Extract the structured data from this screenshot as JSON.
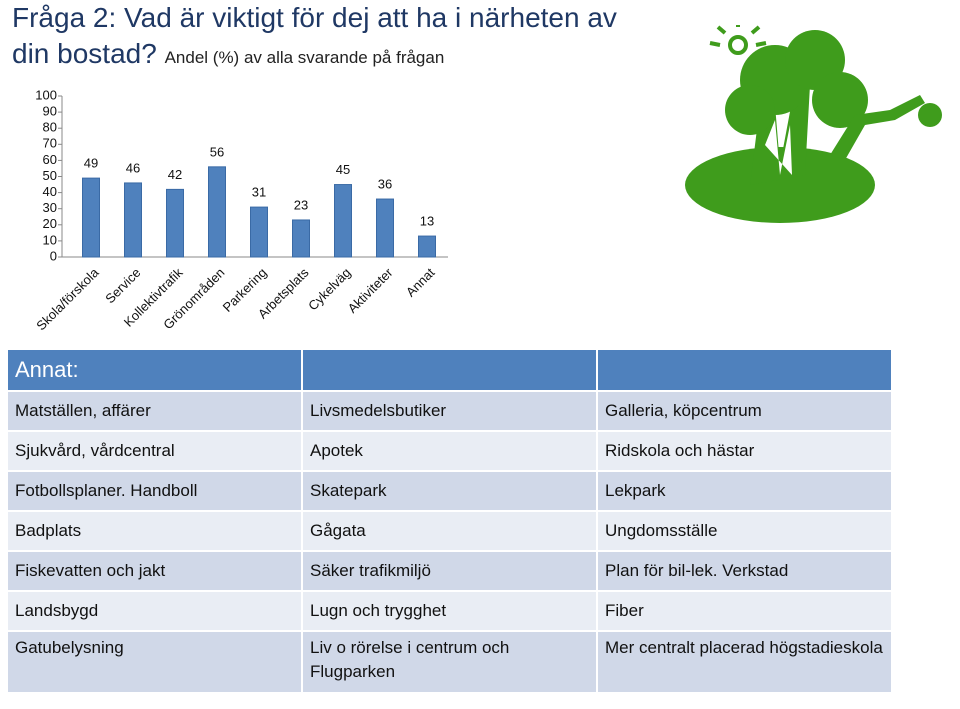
{
  "title": "Fråga 2: Vad är viktigt för dej att ha i närheten av din bostad?",
  "subtitle": "Andel (%) av alla svarande på frågan",
  "chart_data": {
    "type": "bar",
    "categories": [
      "Skola/förskola",
      "Service",
      "Kollektivtrafik",
      "Grönområden",
      "Parkering",
      "Arbetsplats",
      "Cykelväg",
      "Aktiviteter",
      "Annat"
    ],
    "values": [
      49,
      46,
      42,
      56,
      31,
      23,
      45,
      36,
      13
    ],
    "color": "#4f81bd",
    "ylim": [
      0,
      100
    ],
    "yticks": [
      0,
      10,
      20,
      30,
      40,
      50,
      60,
      70,
      80,
      90,
      100
    ],
    "grid": false
  },
  "table": {
    "header": "Annat:",
    "rows": [
      [
        "Matställen, affärer",
        "Livsmedelsbutiker",
        "Galleria, köpcentrum"
      ],
      [
        "Sjukvård, vårdcentral",
        "Apotek",
        "Ridskola och hästar"
      ],
      [
        "Fotbollsplaner. Handboll",
        "Skatepark",
        "Lekpark"
      ],
      [
        "Badplats",
        "Gågata",
        "Ungdomsställe"
      ],
      [
        "Fiskevatten och jakt",
        "Säker trafikmiljö",
        "Plan för bil-lek. Verkstad"
      ],
      [
        "Landsbygd",
        "Lugn och trygghet",
        "Fiber"
      ],
      [
        "Gatubelysning",
        "Liv o rörelse i centrum och Flugparken",
        "Mer centralt placerad högstadieskola"
      ]
    ]
  }
}
